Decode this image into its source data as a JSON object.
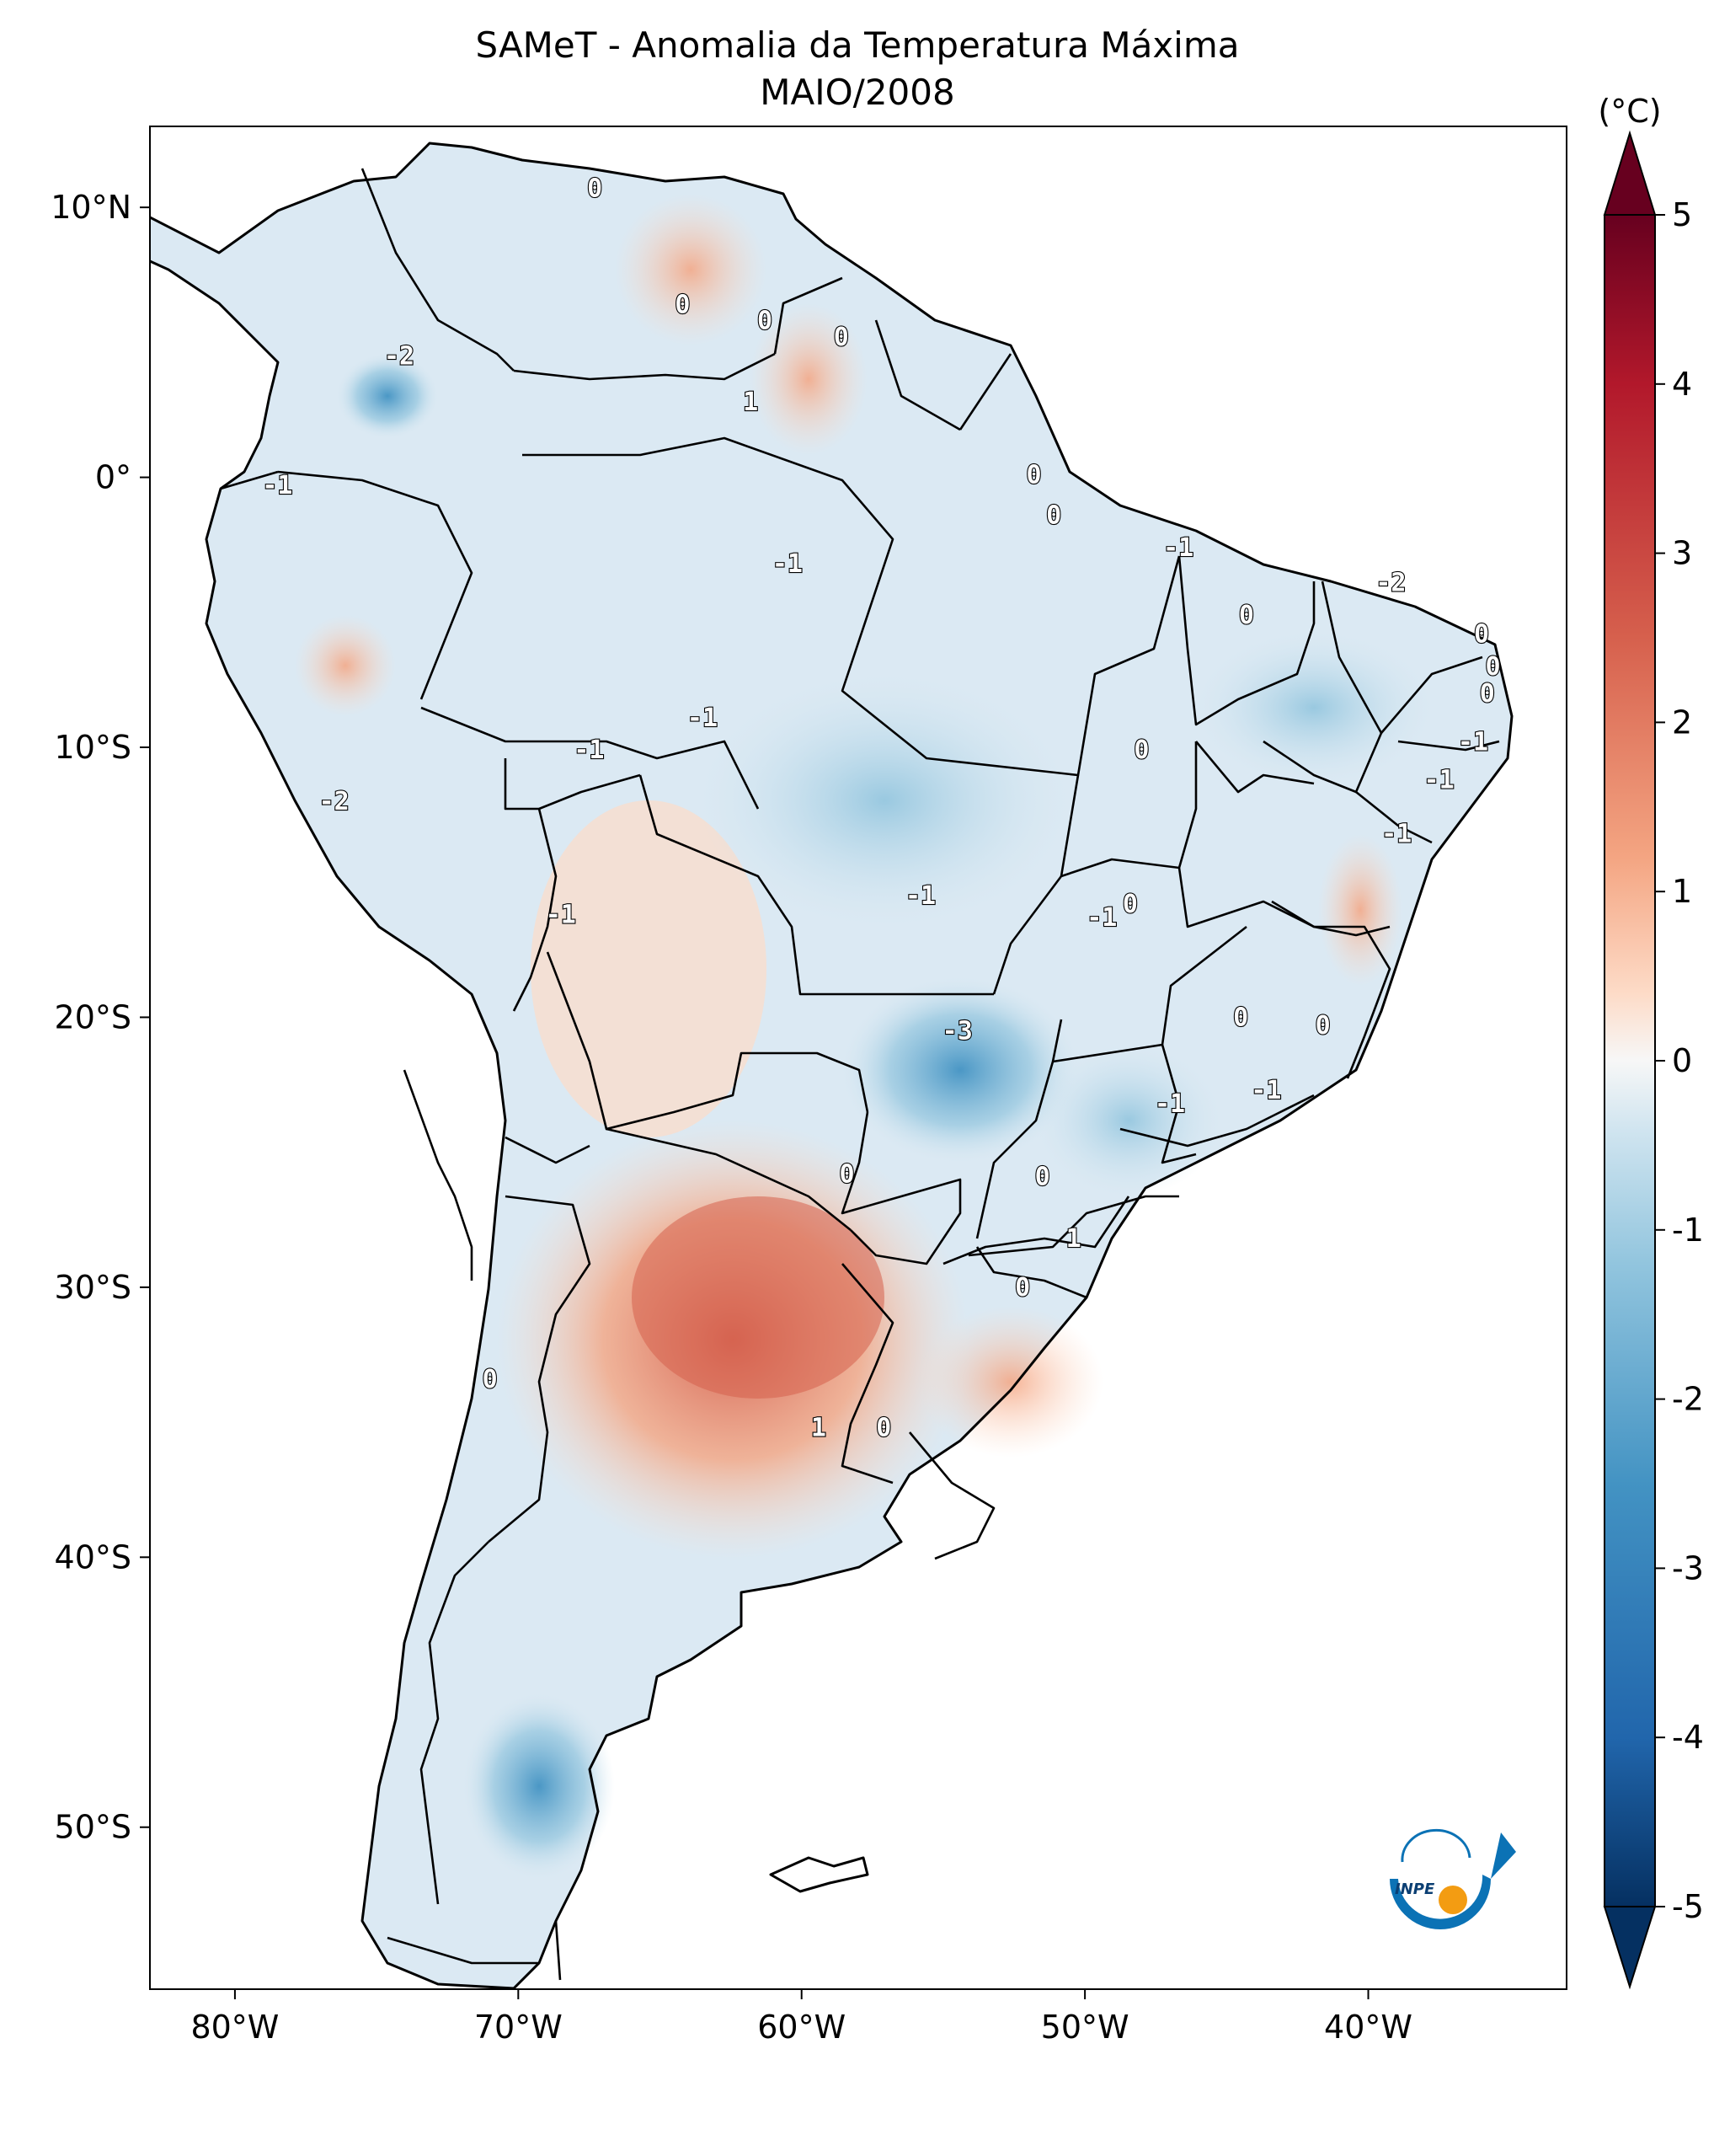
{
  "title": "SAMeT - Anomalia da Temperatura Máxima",
  "subtitle": "MAIO/2008",
  "colorbar": {
    "unit_label": "(°C)",
    "ticks": [
      "5",
      "4",
      "3",
      "2",
      "1",
      "0",
      "-1",
      "-2",
      "-3",
      "-4",
      "-5"
    ],
    "range": [
      -5,
      5
    ],
    "colors": {
      "max": "#67001f",
      "high": "#d6604d",
      "mid": "#f7f7f7",
      "low": "#4393c3",
      "min": "#053061"
    }
  },
  "axes": {
    "lon_ticks": [
      "80°W",
      "70°W",
      "60°W",
      "50°W",
      "40°W"
    ],
    "lat_ticks": [
      "10°N",
      "0°",
      "10°S",
      "20°S",
      "30°S",
      "40°S",
      "50°S"
    ],
    "lon_range": [
      -83,
      -33
    ],
    "lat_range": [
      -56,
      13
    ]
  },
  "contour_labels": [
    {
      "text": "0",
      "lon": -67.3,
      "lat": 10.7
    },
    {
      "text": "-2",
      "lon": -74.2,
      "lat": 4.5
    },
    {
      "text": "0",
      "lon": -64.2,
      "lat": 6.4
    },
    {
      "text": "0",
      "lon": -61.3,
      "lat": 5.8
    },
    {
      "text": "0",
      "lon": -58.6,
      "lat": 5.2
    },
    {
      "text": "1",
      "lon": -61.8,
      "lat": 2.8
    },
    {
      "text": "-1",
      "lon": -78.5,
      "lat": -0.3
    },
    {
      "text": "0",
      "lon": -51.8,
      "lat": 0.1
    },
    {
      "text": "0",
      "lon": -51.1,
      "lat": -1.4
    },
    {
      "text": "-1",
      "lon": -60.5,
      "lat": -3.2
    },
    {
      "text": "-1",
      "lon": -46.7,
      "lat": -2.6
    },
    {
      "text": "-2",
      "lon": -39.2,
      "lat": -3.9
    },
    {
      "text": "0",
      "lon": -44.3,
      "lat": -5.1
    },
    {
      "text": "0",
      "lon": -36.0,
      "lat": -5.8
    },
    {
      "text": "0",
      "lon": -35.6,
      "lat": -7.0
    },
    {
      "text": "0",
      "lon": -35.8,
      "lat": -8.0
    },
    {
      "text": "-1",
      "lon": -36.3,
      "lat": -9.8
    },
    {
      "text": "-1",
      "lon": -37.5,
      "lat": -11.2
    },
    {
      "text": "-1",
      "lon": -39.0,
      "lat": -13.2
    },
    {
      "text": "-1",
      "lon": -63.5,
      "lat": -8.9
    },
    {
      "text": "-1",
      "lon": -67.5,
      "lat": -10.1
    },
    {
      "text": "0",
      "lon": -48.0,
      "lat": -10.1
    },
    {
      "text": "-2",
      "lon": -76.5,
      "lat": -12.0
    },
    {
      "text": "-1",
      "lon": -55.8,
      "lat": -15.5
    },
    {
      "text": "0",
      "lon": -48.4,
      "lat": -15.8
    },
    {
      "text": "-1",
      "lon": -49.4,
      "lat": -16.3
    },
    {
      "text": "-1",
      "lon": -68.5,
      "lat": -16.2
    },
    {
      "text": "-3",
      "lon": -54.5,
      "lat": -20.5
    },
    {
      "text": "0",
      "lon": -44.5,
      "lat": -20.0
    },
    {
      "text": "0",
      "lon": -41.6,
      "lat": -20.3
    },
    {
      "text": "-1",
      "lon": -47.0,
      "lat": -23.2
    },
    {
      "text": "-1",
      "lon": -43.6,
      "lat": -22.7
    },
    {
      "text": "0",
      "lon": -58.4,
      "lat": -25.8
    },
    {
      "text": "0",
      "lon": -51.5,
      "lat": -25.9
    },
    {
      "text": "1",
      "lon": -50.4,
      "lat": -28.2
    },
    {
      "text": "0",
      "lon": -52.2,
      "lat": -30.0
    },
    {
      "text": "0",
      "lon": -71.0,
      "lat": -33.4
    },
    {
      "text": "1",
      "lon": -59.4,
      "lat": -35.2
    },
    {
      "text": "0",
      "lon": -57.1,
      "lat": -35.2
    }
  ],
  "logo": {
    "text": "INPE"
  }
}
